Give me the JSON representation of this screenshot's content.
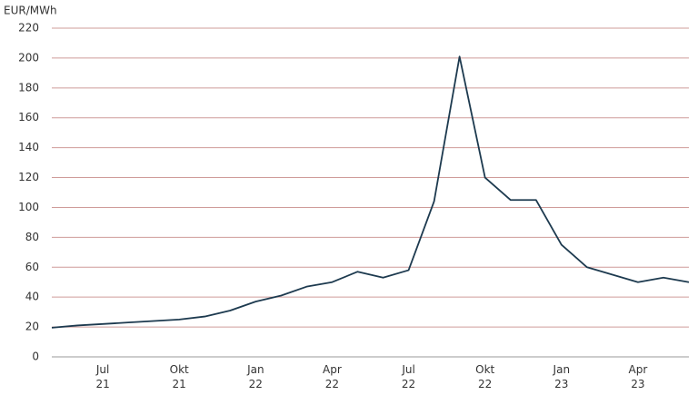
{
  "chart_data": {
    "type": "line",
    "y_label": "EUR/MWh",
    "categories": [
      null,
      null,
      "Jul 21",
      null,
      null,
      "Okt 21",
      null,
      null,
      "Jan 22",
      null,
      null,
      "Apr 22",
      null,
      null,
      "Jul 22",
      null,
      null,
      "Okt 22",
      null,
      null,
      "Jan 23",
      null,
      null,
      "Apr 23",
      null,
      null
    ],
    "series": [
      {
        "color": "#1d3a4f",
        "values": [
          19.5,
          21,
          22,
          23,
          24,
          25,
          27,
          31,
          37,
          41,
          47,
          50,
          57,
          53,
          58,
          104,
          201,
          120,
          105,
          105,
          75,
          60,
          55,
          50,
          53,
          50
        ]
      }
    ],
    "ylim": [
      0,
      220
    ],
    "yticks": [
      0,
      20,
      40,
      60,
      80,
      100,
      120,
      140,
      160,
      180,
      200,
      220
    ],
    "grid": true,
    "grid_color": "#cf9c9a"
  }
}
